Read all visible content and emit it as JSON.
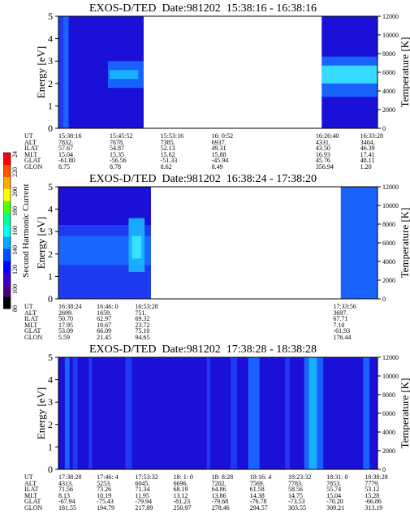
{
  "panels": [
    {
      "title_instrument": "EXOS-D/TED",
      "title_date": "Date:981202",
      "title_range": "15:38:16 - 16:38:16",
      "y_left_label": "Energy [eV]",
      "y_right_label": "Temperature [K]",
      "y_left_ticks": [
        "0",
        "1",
        "2",
        "3",
        "4",
        "5"
      ],
      "y_right_ticks": [
        "0",
        "2000",
        "4000",
        "6000",
        "8000",
        "10000",
        "12000"
      ],
      "data_gap": [
        0.267,
        0.825
      ],
      "spectrogram": {
        "background_level": "low",
        "bands": [
          {
            "t0": 0.0,
            "t1": 0.015,
            "e0": 0.0,
            "e1": 5.0,
            "level": "mid-low"
          },
          {
            "t0": 0.015,
            "t1": 0.032,
            "e0": 0.0,
            "e1": 5.0,
            "level": "mid"
          },
          {
            "t0": 0.155,
            "t1": 0.267,
            "e0": 1.8,
            "e1": 3.0,
            "level": "mid"
          },
          {
            "t0": 0.16,
            "t1": 0.25,
            "e0": 2.2,
            "e1": 2.6,
            "level": "mid-high"
          },
          {
            "t0": 0.825,
            "t1": 1.0,
            "e0": 1.4,
            "e1": 3.2,
            "level": "mid"
          },
          {
            "t0": 0.825,
            "t1": 1.0,
            "e0": 2.0,
            "e1": 2.8,
            "level": "high"
          }
        ]
      },
      "orbit": {
        "labels": [
          "UT",
          "ALT",
          "ILAT",
          "MLT",
          "GLAT",
          "GLON"
        ],
        "columns": [
          {
            "x": 0.0,
            "values": [
              "15:38:16",
              "7832.",
              "57.67",
              "15.04",
              "-61.80",
              "8.75"
            ]
          },
          {
            "x": 0.167,
            "values": [
              "15:45:52",
              "7678.",
              "54.87",
              "15.35",
              "-56.56",
              "8.78"
            ]
          },
          {
            "x": 0.333,
            "values": [
              "15:53:16",
              "7385.",
              "52.13",
              "15.62",
              "-51.33",
              "8.62"
            ]
          },
          {
            "x": 0.5,
            "values": [
              "16: 0:52",
              "6937.",
              "49.31",
              "15.88",
              "-45.94",
              "8.49"
            ]
          },
          {
            "x": 0.84,
            "values": [
              "16:26:40",
              "4331.",
              "43.50",
              "16.93",
              "45.76",
              "356.94"
            ]
          },
          {
            "x": 0.985,
            "values": [
              "16:33:28",
              "3404.",
              "46.39",
              "17.41",
              "48.11",
              "1.20"
            ]
          }
        ]
      }
    },
    {
      "title_instrument": "EXOS-D/TED",
      "title_date": "Date:981202",
      "title_range": "16:38:24 - 17:38:20",
      "y_left_label": "Energy [eV]",
      "y_right_label": "Temperature [K]",
      "y_left_ticks": [
        "0",
        "1",
        "2",
        "3",
        "4",
        "5"
      ],
      "y_right_ticks": [
        "0",
        "2000",
        "4000",
        "6000",
        "8000",
        "10000",
        "12000"
      ],
      "data_gap": [
        0.29,
        0.885
      ],
      "spectrogram": {
        "background_level": "low",
        "bands": [
          {
            "t0": 0.0,
            "t1": 0.29,
            "e0": 0.0,
            "e1": 3.3,
            "level": "mid-low"
          },
          {
            "t0": 0.0,
            "t1": 0.29,
            "e0": 1.5,
            "e1": 2.8,
            "level": "mid"
          },
          {
            "t0": 0.22,
            "t1": 0.27,
            "e0": 1.2,
            "e1": 3.6,
            "level": "mid-high"
          },
          {
            "t0": 0.23,
            "t1": 0.26,
            "e0": 1.8,
            "e1": 2.8,
            "level": "high"
          },
          {
            "t0": 0.885,
            "t1": 1.0,
            "e0": 0.0,
            "e1": 5.0,
            "level": "mid"
          }
        ]
      },
      "orbit": {
        "labels": [
          "UT",
          "ALT",
          "ILAT",
          "MLT",
          "GLAT",
          "GLON"
        ],
        "columns": [
          {
            "x": 0.0,
            "values": [
              "16:38:24",
              "2699.",
              "50.70",
              "17.95",
              "53.09",
              "5.59"
            ]
          },
          {
            "x": 0.125,
            "values": [
              "16:46: 0",
              "1659.",
              "62.97",
              "19.67",
              "66.09",
              "21.45"
            ]
          },
          {
            "x": 0.25,
            "values": [
              "16:53:28",
              "751.",
              "69.32",
              "23.72",
              "75.10",
              "94.65"
            ]
          },
          {
            "x": 0.897,
            "values": [
              "17:33:56",
              "3697.",
              "67.71",
              "7.10",
              "-61.93",
              "176.44"
            ]
          }
        ]
      }
    },
    {
      "title_instrument": "EXOS-D/TED",
      "title_date": "Date:981202",
      "title_range": "17:38:28 - 18:38:28",
      "y_left_label": "Energy [eV]",
      "y_right_label": "Temperature [K]",
      "y_left_ticks": [
        "0",
        "1",
        "2",
        "3",
        "4",
        "5"
      ],
      "y_right_ticks": [
        "0",
        "2000",
        "4000",
        "6000",
        "8000",
        "10000",
        "12000"
      ],
      "data_gap": null,
      "spectrogram": {
        "background_level": "low",
        "bands": [
          {
            "t0": 0.02,
            "t1": 0.035,
            "e0": 0.0,
            "e1": 5.0,
            "level": "mid"
          },
          {
            "t0": 0.045,
            "t1": 0.06,
            "e0": 0.0,
            "e1": 5.0,
            "level": "mid-low"
          },
          {
            "t0": 0.095,
            "t1": 0.105,
            "e0": 0.0,
            "e1": 5.0,
            "level": "mid-low"
          },
          {
            "t0": 0.21,
            "t1": 0.23,
            "e0": 0.0,
            "e1": 5.0,
            "level": "mid-low"
          },
          {
            "t0": 0.465,
            "t1": 0.475,
            "e0": 0.0,
            "e1": 5.0,
            "level": "mid-low"
          },
          {
            "t0": 0.54,
            "t1": 0.56,
            "e0": 0.0,
            "e1": 5.0,
            "level": "mid-low"
          },
          {
            "t0": 0.595,
            "t1": 0.63,
            "e0": 0.0,
            "e1": 5.0,
            "level": "mid"
          },
          {
            "t0": 0.71,
            "t1": 0.725,
            "e0": 0.0,
            "e1": 5.0,
            "level": "mid-low"
          },
          {
            "t0": 0.77,
            "t1": 0.83,
            "e0": 0.0,
            "e1": 5.0,
            "level": "mid"
          },
          {
            "t0": 0.785,
            "t1": 0.81,
            "e0": 0.0,
            "e1": 5.0,
            "level": "mid-high"
          },
          {
            "t0": 0.955,
            "t1": 0.975,
            "e0": 0.0,
            "e1": 5.0,
            "level": "mid"
          }
        ]
      },
      "orbit": {
        "labels": [
          "UT",
          "ALT",
          "ILAT",
          "MLT",
          "GLAT",
          "GLON"
        ],
        "columns": [
          {
            "x": 0.0,
            "values": [
              "17:38:28",
              "4313.",
              "71.56",
              "8.13",
              "-67.94",
              "181.55"
            ]
          },
          {
            "x": 0.125,
            "values": [
              "17:46: 4",
              "5253.",
              "73.26",
              "10.19",
              "-75.43",
              "194.79"
            ]
          },
          {
            "x": 0.25,
            "values": [
              "17:53:32",
              "6045.",
              "71.34",
              "11.95",
              "-79.94",
              "217.89"
            ]
          },
          {
            "x": 0.375,
            "values": [
              "18: 1: 0",
              "6696.",
              "68.19",
              "13.12",
              "-81.23",
              "250.97"
            ]
          },
          {
            "x": 0.5,
            "values": [
              "18: 8:28",
              "7202.",
              "64.86",
              "13.86",
              "-79.68",
              "278.46"
            ]
          },
          {
            "x": 0.625,
            "values": [
              "18:16: 4",
              "7569.",
              "61.58",
              "14.38",
              "-76.78",
              "294.57"
            ]
          },
          {
            "x": 0.75,
            "values": [
              "18:23:32",
              "7783.",
              "58.56",
              "14.75",
              "-73.53",
              "303.55"
            ]
          },
          {
            "x": 0.875,
            "values": [
              "18:31: 0",
              "7853.",
              "55.74",
              "15.04",
              "-70.20",
              "309.21"
            ]
          },
          {
            "x": 1.0,
            "values": [
              "18:38:28",
              "7779.",
              "53.12",
              "15.28",
              "-66.86",
              "313.19"
            ]
          }
        ]
      }
    }
  ],
  "colorbar": {
    "label": "Second Harmonic Current",
    "ticks": [
      "80",
      "100",
      "120",
      "140",
      "160",
      "180",
      "200",
      "220",
      "240"
    ],
    "colors": [
      "#000000",
      "#4b0082",
      "#3b00c8",
      "#0000ff",
      "#0050ff",
      "#00aaff",
      "#00ffee",
      "#00ff99",
      "#55ff00",
      "#ffff00",
      "#ffaa00",
      "#ff5500",
      "#ff0000"
    ]
  },
  "colors": {
    "low": "#1a10d8",
    "mid-low": "#2040f4",
    "mid": "#1a6cff",
    "mid-high": "#1ab8ff",
    "high": "#3ae8ff"
  },
  "chart_data": [
    {
      "type": "heatmap",
      "title": "EXOS-D/TED  Date:981202  15:38:16 - 16:38:16",
      "xlabel": "",
      "ylabel": "Energy [eV]",
      "ylabel_right": "Temperature [K]",
      "ylim": [
        0,
        5
      ],
      "ylim_right": [
        0,
        12000
      ],
      "x_ticks": [
        "15:38:16",
        "15:45:52",
        "15:53:16",
        "16: 0:52",
        "16:26:40",
        "16:33:28"
      ]
    },
    {
      "type": "heatmap",
      "title": "EXOS-D/TED  Date:981202  16:38:24 - 17:38:20",
      "xlabel": "",
      "ylabel": "Energy [eV]",
      "ylabel_right": "Temperature [K]",
      "ylim": [
        0,
        5
      ],
      "ylim_right": [
        0,
        12000
      ],
      "x_ticks": [
        "16:38:24",
        "16:46: 0",
        "16:53:28",
        "17:33:56"
      ]
    },
    {
      "type": "heatmap",
      "title": "EXOS-D/TED  Date:981202  17:38:28 - 18:38:28",
      "xlabel": "",
      "ylabel": "Energy [eV]",
      "ylabel_right": "Temperature [K]",
      "ylim": [
        0,
        5
      ],
      "ylim_right": [
        0,
        12000
      ],
      "x_ticks": [
        "17:38:28",
        "17:46: 4",
        "17:53:32",
        "18: 1: 0",
        "18: 8:28",
        "18:16: 4",
        "18:23:32",
        "18:31: 0",
        "18:38:28"
      ]
    }
  ]
}
